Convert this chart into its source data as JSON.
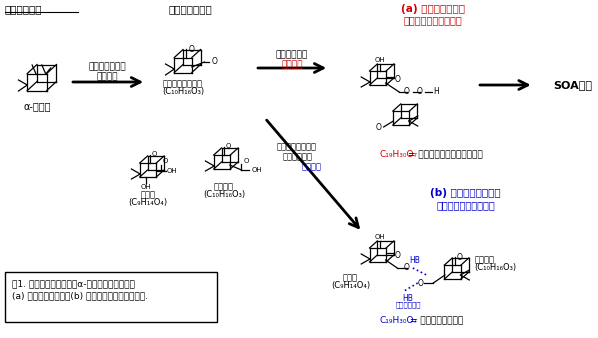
{
  "bg_color": "#ffffff",
  "title_monoterpene": "モノテルペン",
  "title_terpene_oxide": "テルペン酸化体",
  "label_alpha_pinene": "α-ピネン",
  "label_ozone_line1": "オゾン等による",
  "label_ozone_line2": "酸化反応",
  "label_criegee_line1": "クリーギー中間体",
  "label_criegee_line2": "(C₁₀H₁₆O₃)",
  "label_pinic_line1": "ピン酸",
  "label_pinic_line2": "(C₉H₁₄O₄)",
  "label_pinonic_line1": "ピノン酸",
  "label_pinonic_line2": "(C₁₀H₁₆O₃)",
  "label_a_title_line1": "(a) テルペン二量体",
  "label_a_title_line2": "（共有結合性二量体）",
  "label_b_title_line1": "(b) アーティファクト",
  "label_b_title_line2": "（水素結合性二量体）",
  "label_soa": "SOA生成",
  "label_covalent_line1": "酸化体同士が",
  "label_covalent_red": "共有結合",
  "label_hydrogen_line1": "質量分析計の中で",
  "label_hydrogen_line2": "酸化体同士が",
  "label_hydrogen_blue": "水素結合",
  "label_a_formula_red": "C₁₉H₃₀O₇",
  "label_a_formula_black": " = ピン酸＋クリーギー中間体",
  "label_b_formula_blue": "C₁₉H₃₀O₇",
  "label_b_formula_black": " = ピン酸＋ピノン酸",
  "label_pinic_b_line1": "ピン酸",
  "label_pinic_b_line2": "(C₉H₁₄O₄)",
  "label_pinonic_b_line1": "ピノン酸",
  "label_pinonic_b_line2": "(C₁₀H₁₆O₃)",
  "label_HB": "HB",
  "label_HB2": "HB",
  "label_suisoketsugo": "（水素結合）",
  "caption_line1": "図1. モノテルペンの一種α-ピネンから生成する",
  "caption_line2": "(a) テルペン二量体と(b) アーティファクトの一例.",
  "color_red": "#cc0000",
  "color_blue": "#0000cc",
  "color_black": "#000000"
}
